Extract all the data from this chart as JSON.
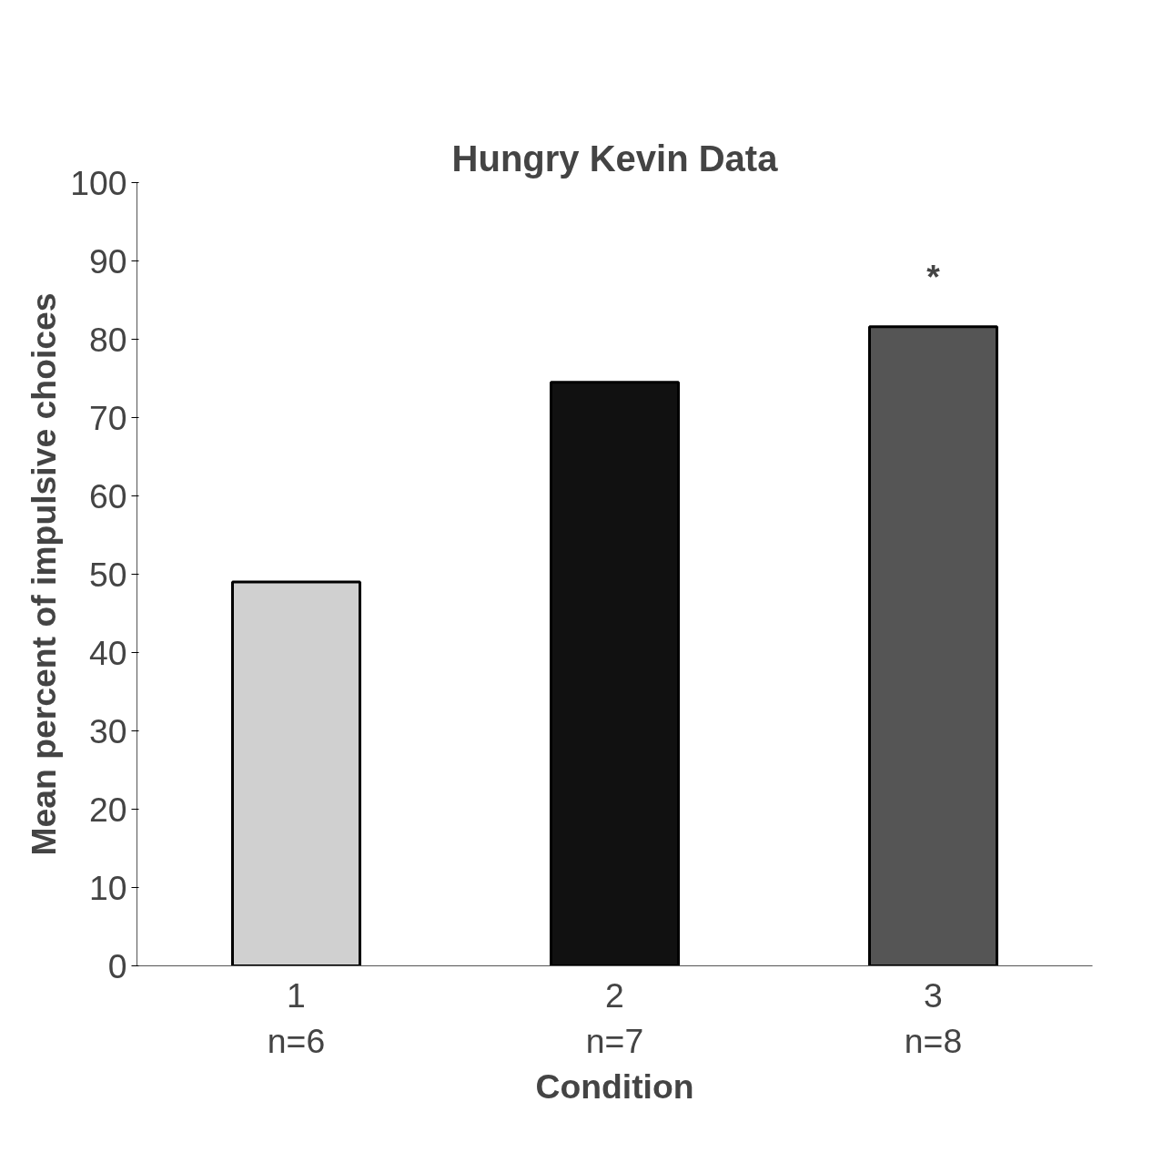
{
  "chart_data": {
    "type": "bar",
    "title": "Hungry Kevin Data",
    "xlabel": "Condition",
    "ylabel": "Mean percent of impulsive choices",
    "categories": [
      "1\nn=6",
      "2\nn=7",
      "3\nn=8"
    ],
    "values": [
      49,
      74.5,
      81.6
    ],
    "colors": [
      "#d0d0d0",
      "#111111",
      "#555555"
    ],
    "ylim": [
      0,
      100
    ],
    "yticks": [
      0,
      10,
      20,
      30,
      40,
      50,
      60,
      70,
      80,
      90,
      100
    ],
    "grid": false,
    "annotations": [
      "*"
    ]
  }
}
